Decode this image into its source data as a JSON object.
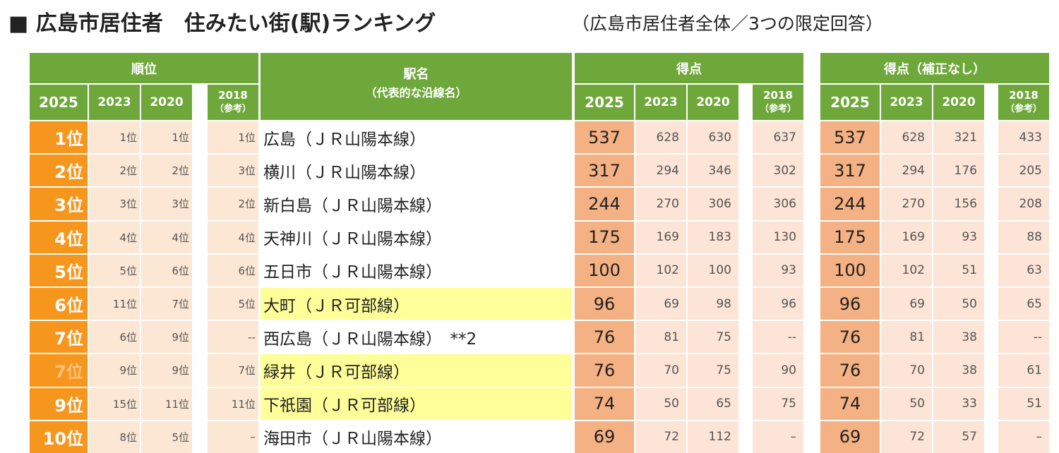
{
  "title": "■ 広島市居住者　住みたい街(駅)ランキング",
  "subtitle": "（広島市居住者全体／3つの限定回答）",
  "header": {
    "rank": "順位",
    "station": "駅名",
    "station_note": "（代表的な沿線名）",
    "score": "得点",
    "raw": "得点（補正なし）",
    "years": [
      "2025",
      "2023",
      "2020",
      "2018"
    ],
    "ref": "（参考）"
  },
  "rows": [
    {
      "rank": [
        "1位",
        "1位",
        "1位",
        "1位"
      ],
      "station": "広島（ＪＲ山陽本線）",
      "score": [
        537,
        628,
        630,
        637
      ],
      "raw": [
        537,
        628,
        321,
        433
      ]
    },
    {
      "rank": [
        "2位",
        "2位",
        "2位",
        "3位"
      ],
      "station": "横川（ＪＲ山陽本線）",
      "score": [
        317,
        294,
        346,
        302
      ],
      "raw": [
        317,
        294,
        176,
        205
      ]
    },
    {
      "rank": [
        "3位",
        "3位",
        "3位",
        "2位"
      ],
      "station": "新白島（ＪＲ山陽本線）",
      "score": [
        244,
        270,
        306,
        306
      ],
      "raw": [
        244,
        270,
        156,
        208
      ]
    },
    {
      "rank": [
        "4位",
        "4位",
        "4位",
        "4位"
      ],
      "station": "天神川（ＪＲ山陽本線）",
      "score": [
        175,
        169,
        183,
        130
      ],
      "raw": [
        175,
        169,
        93,
        88
      ]
    },
    {
      "rank": [
        "5位",
        "5位",
        "6位",
        "6位"
      ],
      "station": "五日市（ＪＲ山陽本線）",
      "score": [
        100,
        102,
        100,
        93
      ],
      "raw": [
        100,
        102,
        51,
        63
      ]
    },
    {
      "rank": [
        "6位",
        "11位",
        "7位",
        "5位"
      ],
      "station": "大町（ＪＲ可部線）",
      "score": [
        96,
        69,
        98,
        96
      ],
      "raw": [
        96,
        69,
        50,
        65
      ],
      "highlight": true
    },
    {
      "rank": [
        "7位",
        "6位",
        "9位",
        "--"
      ],
      "station": "西広島（ＪＲ山陽本線）　**2",
      "score": [
        76,
        81,
        75,
        "--"
      ],
      "raw": [
        76,
        81,
        38,
        "--"
      ]
    },
    {
      "rank": [
        "7位",
        "9位",
        "9位",
        "7位"
      ],
      "station": "緑井（ＪＲ可部線）",
      "score": [
        76,
        70,
        75,
        90
      ],
      "raw": [
        76,
        70,
        38,
        61
      ],
      "highlight": true,
      "faded": true
    },
    {
      "rank": [
        "9位",
        "15位",
        "11位",
        "11位"
      ],
      "station": "下祇園（ＪＲ可部線）",
      "score": [
        74,
        50,
        65,
        75
      ],
      "raw": [
        74,
        50,
        33,
        51
      ],
      "highlight": true
    },
    {
      "rank": [
        "10位",
        "8位",
        "5位",
        "–"
      ],
      "station": "海田市（ＪＲ山陽本線）",
      "score": [
        69,
        72,
        112,
        "–"
      ],
      "raw": [
        69,
        72,
        57,
        "–"
      ]
    }
  ]
}
